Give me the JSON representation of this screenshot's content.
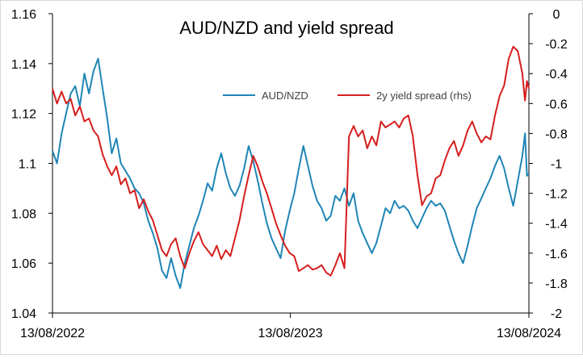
{
  "chart_data": {
    "type": "line",
    "title": "AUD/NZD and yield spread",
    "x_tick_labels": [
      "13/08/2022",
      "13/08/2023",
      "13/08/2024"
    ],
    "x_range": [
      "13/08/2022",
      "13/08/2024"
    ],
    "y_left": {
      "ticks": [
        "1.04",
        "1.06",
        "1.08",
        "1.1",
        "1.12",
        "1.14",
        "1.16"
      ],
      "range": [
        1.04,
        1.16
      ]
    },
    "y_right": {
      "ticks": [
        "-2",
        "-1.8",
        "-1.6",
        "-1.4",
        "-1.2",
        "-1",
        "-0.8",
        "-0.6",
        "-0.4",
        "-0.2",
        "0"
      ],
      "range": [
        -2,
        0
      ]
    },
    "grid": false,
    "legend_position": "top-center",
    "series": [
      {
        "name": "AUD/NZD",
        "axis": "left",
        "color": "#1F86B5",
        "points": [
          [
            "2022-08-13",
            1.105
          ],
          [
            "2022-08-20",
            1.1
          ],
          [
            "2022-08-27",
            1.112
          ],
          [
            "2022-09-03",
            1.12
          ],
          [
            "2022-09-10",
            1.128
          ],
          [
            "2022-09-17",
            1.131
          ],
          [
            "2022-09-24",
            1.123
          ],
          [
            "2022-10-01",
            1.136
          ],
          [
            "2022-10-08",
            1.128
          ],
          [
            "2022-10-15",
            1.137
          ],
          [
            "2022-10-22",
            1.142
          ],
          [
            "2022-10-29",
            1.13
          ],
          [
            "2022-11-05",
            1.118
          ],
          [
            "2022-11-12",
            1.104
          ],
          [
            "2022-11-19",
            1.11
          ],
          [
            "2022-11-26",
            1.1
          ],
          [
            "2022-12-03",
            1.097
          ],
          [
            "2022-12-10",
            1.094
          ],
          [
            "2022-12-17",
            1.09
          ],
          [
            "2022-12-24",
            1.088
          ],
          [
            "2022-12-31",
            1.084
          ],
          [
            "2023-01-07",
            1.077
          ],
          [
            "2023-01-14",
            1.072
          ],
          [
            "2023-01-21",
            1.066
          ],
          [
            "2023-01-28",
            1.057
          ],
          [
            "2023-02-04",
            1.054
          ],
          [
            "2023-02-11",
            1.062
          ],
          [
            "2023-02-18",
            1.055
          ],
          [
            "2023-02-25",
            1.05
          ],
          [
            "2023-03-04",
            1.06
          ],
          [
            "2023-03-11",
            1.067
          ],
          [
            "2023-03-18",
            1.074
          ],
          [
            "2023-03-25",
            1.079
          ],
          [
            "2023-04-01",
            1.085
          ],
          [
            "2023-04-08",
            1.092
          ],
          [
            "2023-04-15",
            1.089
          ],
          [
            "2023-04-22",
            1.098
          ],
          [
            "2023-04-29",
            1.104
          ],
          [
            "2023-05-06",
            1.096
          ],
          [
            "2023-05-13",
            1.09
          ],
          [
            "2023-05-20",
            1.087
          ],
          [
            "2023-05-27",
            1.091
          ],
          [
            "2023-06-03",
            1.098
          ],
          [
            "2023-06-10",
            1.107
          ],
          [
            "2023-06-17",
            1.101
          ],
          [
            "2023-06-24",
            1.093
          ],
          [
            "2023-07-01",
            1.084
          ],
          [
            "2023-07-08",
            1.076
          ],
          [
            "2023-07-15",
            1.07
          ],
          [
            "2023-07-22",
            1.066
          ],
          [
            "2023-07-29",
            1.062
          ],
          [
            "2023-08-05",
            1.073
          ],
          [
            "2023-08-12",
            1.081
          ],
          [
            "2023-08-19",
            1.088
          ],
          [
            "2023-08-26",
            1.098
          ],
          [
            "2023-09-02",
            1.107
          ],
          [
            "2023-09-09",
            1.099
          ],
          [
            "2023-09-16",
            1.091
          ],
          [
            "2023-09-23",
            1.085
          ],
          [
            "2023-09-30",
            1.082
          ],
          [
            "2023-10-07",
            1.077
          ],
          [
            "2023-10-14",
            1.079
          ],
          [
            "2023-10-21",
            1.087
          ],
          [
            "2023-10-28",
            1.085
          ],
          [
            "2023-11-04",
            1.09
          ],
          [
            "2023-11-11",
            1.083
          ],
          [
            "2023-11-18",
            1.088
          ],
          [
            "2023-11-25",
            1.077
          ],
          [
            "2023-12-02",
            1.072
          ],
          [
            "2023-12-09",
            1.068
          ],
          [
            "2023-12-16",
            1.064
          ],
          [
            "2023-12-23",
            1.068
          ],
          [
            "2023-12-30",
            1.075
          ],
          [
            "2024-01-06",
            1.082
          ],
          [
            "2024-01-13",
            1.08
          ],
          [
            "2024-01-20",
            1.085
          ],
          [
            "2024-01-27",
            1.082
          ],
          [
            "2024-02-03",
            1.083
          ],
          [
            "2024-02-10",
            1.081
          ],
          [
            "2024-02-17",
            1.077
          ],
          [
            "2024-02-24",
            1.074
          ],
          [
            "2024-03-02",
            1.078
          ],
          [
            "2024-03-09",
            1.082
          ],
          [
            "2024-03-16",
            1.085
          ],
          [
            "2024-03-23",
            1.083
          ],
          [
            "2024-03-30",
            1.084
          ],
          [
            "2024-04-06",
            1.081
          ],
          [
            "2024-04-13",
            1.075
          ],
          [
            "2024-04-20",
            1.069
          ],
          [
            "2024-04-27",
            1.064
          ],
          [
            "2024-05-04",
            1.06
          ],
          [
            "2024-05-11",
            1.067
          ],
          [
            "2024-05-18",
            1.075
          ],
          [
            "2024-05-25",
            1.082
          ],
          [
            "2024-06-01",
            1.086
          ],
          [
            "2024-06-08",
            1.09
          ],
          [
            "2024-06-15",
            1.094
          ],
          [
            "2024-06-22",
            1.099
          ],
          [
            "2024-06-29",
            1.103
          ],
          [
            "2024-07-06",
            1.098
          ],
          [
            "2024-07-13",
            1.09
          ],
          [
            "2024-07-20",
            1.083
          ],
          [
            "2024-07-27",
            1.093
          ],
          [
            "2024-08-03",
            1.103
          ],
          [
            "2024-08-07",
            1.112
          ],
          [
            "2024-08-10",
            1.095
          ],
          [
            "2024-08-13",
            1.096
          ]
        ]
      },
      {
        "name": "2y yield spread (rhs)",
        "axis": "right",
        "color": "#D61E1E",
        "points": [
          [
            "2022-08-13",
            -0.5
          ],
          [
            "2022-08-20",
            -0.6
          ],
          [
            "2022-08-27",
            -0.52
          ],
          [
            "2022-09-03",
            -0.6
          ],
          [
            "2022-09-10",
            -0.57
          ],
          [
            "2022-09-17",
            -0.68
          ],
          [
            "2022-09-24",
            -0.62
          ],
          [
            "2022-10-01",
            -0.72
          ],
          [
            "2022-10-08",
            -0.7
          ],
          [
            "2022-10-15",
            -0.78
          ],
          [
            "2022-10-22",
            -0.82
          ],
          [
            "2022-10-29",
            -0.94
          ],
          [
            "2022-11-05",
            -1.02
          ],
          [
            "2022-11-12",
            -1.08
          ],
          [
            "2022-11-19",
            -1.02
          ],
          [
            "2022-11-26",
            -1.14
          ],
          [
            "2022-12-03",
            -1.1
          ],
          [
            "2022-12-10",
            -1.2
          ],
          [
            "2022-12-17",
            -1.18
          ],
          [
            "2022-12-24",
            -1.3
          ],
          [
            "2022-12-31",
            -1.24
          ],
          [
            "2023-01-07",
            -1.32
          ],
          [
            "2023-01-14",
            -1.38
          ],
          [
            "2023-01-21",
            -1.48
          ],
          [
            "2023-01-28",
            -1.58
          ],
          [
            "2023-02-04",
            -1.62
          ],
          [
            "2023-02-11",
            -1.54
          ],
          [
            "2023-02-18",
            -1.5
          ],
          [
            "2023-02-25",
            -1.62
          ],
          [
            "2023-03-04",
            -1.7
          ],
          [
            "2023-03-11",
            -1.6
          ],
          [
            "2023-03-18",
            -1.52
          ],
          [
            "2023-03-25",
            -1.46
          ],
          [
            "2023-04-01",
            -1.54
          ],
          [
            "2023-04-08",
            -1.58
          ],
          [
            "2023-04-15",
            -1.62
          ],
          [
            "2023-04-22",
            -1.55
          ],
          [
            "2023-04-29",
            -1.64
          ],
          [
            "2023-05-06",
            -1.58
          ],
          [
            "2023-05-13",
            -1.62
          ],
          [
            "2023-05-20",
            -1.5
          ],
          [
            "2023-05-27",
            -1.38
          ],
          [
            "2023-06-03",
            -1.22
          ],
          [
            "2023-06-10",
            -1.08
          ],
          [
            "2023-06-17",
            -0.95
          ],
          [
            "2023-06-24",
            -1.02
          ],
          [
            "2023-07-01",
            -1.12
          ],
          [
            "2023-07-08",
            -1.2
          ],
          [
            "2023-07-15",
            -1.3
          ],
          [
            "2023-07-22",
            -1.4
          ],
          [
            "2023-07-29",
            -1.48
          ],
          [
            "2023-08-05",
            -1.55
          ],
          [
            "2023-08-12",
            -1.6
          ],
          [
            "2023-08-19",
            -1.62
          ],
          [
            "2023-08-26",
            -1.72
          ],
          [
            "2023-09-02",
            -1.7
          ],
          [
            "2023-09-09",
            -1.68
          ],
          [
            "2023-09-16",
            -1.71
          ],
          [
            "2023-09-23",
            -1.7
          ],
          [
            "2023-09-30",
            -1.68
          ],
          [
            "2023-10-07",
            -1.73
          ],
          [
            "2023-10-14",
            -1.75
          ],
          [
            "2023-10-21",
            -1.68
          ],
          [
            "2023-10-28",
            -1.6
          ],
          [
            "2023-11-04",
            -1.7
          ],
          [
            "2023-11-11",
            -0.82
          ],
          [
            "2023-11-18",
            -0.75
          ],
          [
            "2023-11-25",
            -0.82
          ],
          [
            "2023-12-02",
            -0.78
          ],
          [
            "2023-12-09",
            -0.9
          ],
          [
            "2023-12-16",
            -0.82
          ],
          [
            "2023-12-23",
            -0.88
          ],
          [
            "2023-12-30",
            -0.72
          ],
          [
            "2024-01-06",
            -0.76
          ],
          [
            "2024-01-13",
            -0.74
          ],
          [
            "2024-01-20",
            -0.72
          ],
          [
            "2024-01-27",
            -0.76
          ],
          [
            "2024-02-03",
            -0.7
          ],
          [
            "2024-02-10",
            -0.68
          ],
          [
            "2024-02-17",
            -0.82
          ],
          [
            "2024-02-24",
            -1.08
          ],
          [
            "2024-03-02",
            -1.28
          ],
          [
            "2024-03-09",
            -1.22
          ],
          [
            "2024-03-16",
            -1.2
          ],
          [
            "2024-03-23",
            -1.1
          ],
          [
            "2024-03-30",
            -1.08
          ],
          [
            "2024-04-06",
            -0.98
          ],
          [
            "2024-04-13",
            -0.9
          ],
          [
            "2024-04-20",
            -0.85
          ],
          [
            "2024-04-27",
            -0.95
          ],
          [
            "2024-05-04",
            -0.88
          ],
          [
            "2024-05-11",
            -0.78
          ],
          [
            "2024-05-18",
            -0.72
          ],
          [
            "2024-05-25",
            -0.8
          ],
          [
            "2024-06-01",
            -0.86
          ],
          [
            "2024-06-08",
            -0.82
          ],
          [
            "2024-06-15",
            -0.84
          ],
          [
            "2024-06-22",
            -0.68
          ],
          [
            "2024-06-29",
            -0.55
          ],
          [
            "2024-07-06",
            -0.48
          ],
          [
            "2024-07-13",
            -0.3
          ],
          [
            "2024-07-20",
            -0.22
          ],
          [
            "2024-07-27",
            -0.25
          ],
          [
            "2024-08-03",
            -0.4
          ],
          [
            "2024-08-07",
            -0.58
          ],
          [
            "2024-08-10",
            -0.45
          ],
          [
            "2024-08-13",
            -0.5
          ]
        ]
      }
    ]
  }
}
